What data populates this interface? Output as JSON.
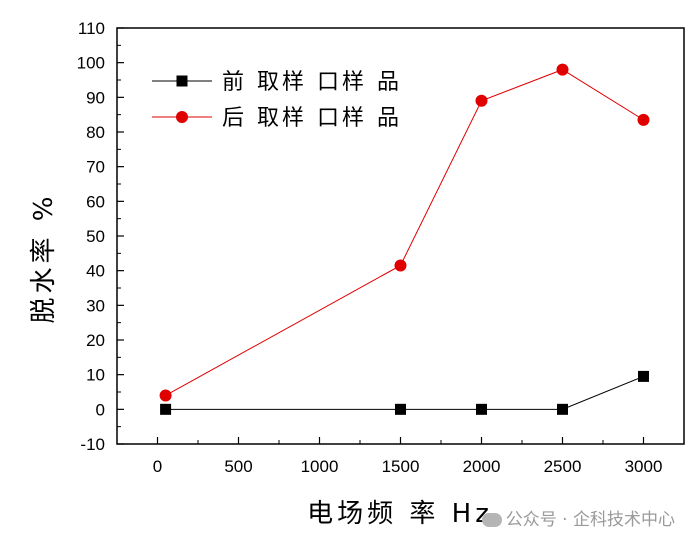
{
  "chart_data": {
    "type": "line",
    "xlabel": "电场频 率 Hz",
    "ylabel": "脱水率 %",
    "xlim": [
      -250,
      3250
    ],
    "ylim": [
      -10,
      110
    ],
    "x_ticks": [
      0,
      500,
      1000,
      1500,
      2000,
      2500,
      3000
    ],
    "y_ticks": [
      -10,
      0,
      10,
      20,
      30,
      40,
      50,
      60,
      70,
      80,
      90,
      100,
      110
    ],
    "grid": false,
    "legend_position": "top-left",
    "series": [
      {
        "name": "前 取样 口样 品",
        "color": "#000000",
        "marker": "square",
        "x": [
          50,
          1500,
          2000,
          2500,
          3000
        ],
        "y": [
          0,
          0,
          0,
          0,
          9.5
        ]
      },
      {
        "name": "后 取样 口样 品",
        "color": "#e00000",
        "marker": "circle",
        "x": [
          50,
          1500,
          2000,
          2500,
          3000
        ],
        "y": [
          4,
          41.5,
          89,
          98,
          83.5
        ]
      }
    ]
  },
  "watermark": "公众号 · 企科技术中心"
}
